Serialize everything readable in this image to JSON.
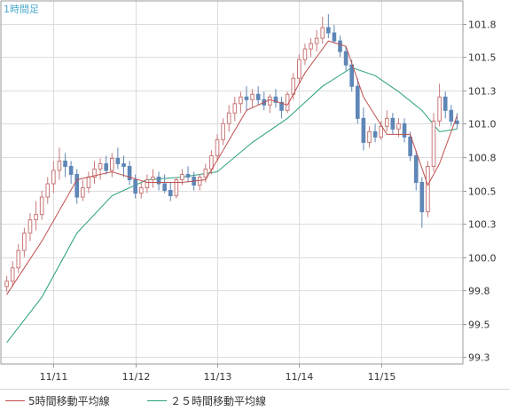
{
  "chart_data": {
    "type": "candlestick",
    "title": "1時間足",
    "x_tick_labels": [
      "11/11",
      "11/12",
      "11/13",
      "11/14",
      "11/15"
    ],
    "y_tick_labels": [
      "101.8",
      "101.5",
      "101.3",
      "101.0",
      "100.8",
      "100.5",
      "100.3",
      "100.0",
      "99.8",
      "99.5",
      "99.3"
    ],
    "y_tick_values": [
      101.75,
      101.5,
      101.25,
      101.0,
      100.75,
      100.5,
      100.25,
      100.0,
      99.75,
      99.5,
      99.25
    ],
    "ylim": [
      99.2,
      101.92
    ],
    "grid": true,
    "legend_position": "bottom",
    "colors": {
      "up": "#c87878",
      "down": "#5e86b6",
      "ma5": "#c05050",
      "ma25": "#2aa07a",
      "grid": "#dcdcdc",
      "axis": "#999999",
      "title": "#4aa8cc"
    },
    "series": [
      {
        "name": "5時間移動平均線",
        "color": "#c05050"
      },
      {
        "name": "２５時間移動平均線",
        "color": "#2aa07a"
      }
    ],
    "candles": [
      [
        99.78,
        99.86,
        99.74,
        99.82
      ],
      [
        99.82,
        99.97,
        99.78,
        99.92
      ],
      [
        99.92,
        100.1,
        99.88,
        100.05
      ],
      [
        100.05,
        100.22,
        100.0,
        100.18
      ],
      [
        100.18,
        100.33,
        100.12,
        100.28
      ],
      [
        100.28,
        100.42,
        100.2,
        100.32
      ],
      [
        100.32,
        100.5,
        100.28,
        100.45
      ],
      [
        100.45,
        100.6,
        100.4,
        100.55
      ],
      [
        100.55,
        100.72,
        100.48,
        100.65
      ],
      [
        100.65,
        100.82,
        100.58,
        100.72
      ],
      [
        100.72,
        100.78,
        100.6,
        100.68
      ],
      [
        100.68,
        100.72,
        100.55,
        100.62
      ],
      [
        100.62,
        100.66,
        100.4,
        100.45
      ],
      [
        100.45,
        100.58,
        100.42,
        100.52
      ],
      [
        100.52,
        100.64,
        100.48,
        100.6
      ],
      [
        100.6,
        100.72,
        100.55,
        100.66
      ],
      [
        100.66,
        100.74,
        100.58,
        100.7
      ],
      [
        100.7,
        100.76,
        100.62,
        100.65
      ],
      [
        100.65,
        100.78,
        100.6,
        100.74
      ],
      [
        100.74,
        100.82,
        100.66,
        100.7
      ],
      [
        100.7,
        100.76,
        100.6,
        100.68
      ],
      [
        100.68,
        100.72,
        100.54,
        100.58
      ],
      [
        100.58,
        100.62,
        100.44,
        100.48
      ],
      [
        100.48,
        100.56,
        100.44,
        100.52
      ],
      [
        100.52,
        100.62,
        100.48,
        100.58
      ],
      [
        100.58,
        100.66,
        100.52,
        100.6
      ],
      [
        100.6,
        100.64,
        100.5,
        100.55
      ],
      [
        100.55,
        100.62,
        100.48,
        100.5
      ],
      [
        100.5,
        100.56,
        100.42,
        100.46
      ],
      [
        100.46,
        100.6,
        100.44,
        100.58
      ],
      [
        100.58,
        100.66,
        100.54,
        100.62
      ],
      [
        100.62,
        100.68,
        100.56,
        100.6
      ],
      [
        100.6,
        100.64,
        100.5,
        100.54
      ],
      [
        100.54,
        100.62,
        100.5,
        100.6
      ],
      [
        100.6,
        100.7,
        100.56,
        100.66
      ],
      [
        100.66,
        100.8,
        100.62,
        100.76
      ],
      [
        100.76,
        100.92,
        100.72,
        100.88
      ],
      [
        100.88,
        101.04,
        100.84,
        101.0
      ],
      [
        101.0,
        101.14,
        100.94,
        101.08
      ],
      [
        101.08,
        101.2,
        101.02,
        101.15
      ],
      [
        101.15,
        101.24,
        101.08,
        101.2
      ],
      [
        101.2,
        101.28,
        101.1,
        101.18
      ],
      [
        101.18,
        101.26,
        101.12,
        101.22
      ],
      [
        101.22,
        101.28,
        101.14,
        101.18
      ],
      [
        101.18,
        101.24,
        101.1,
        101.14
      ],
      [
        101.14,
        101.22,
        101.08,
        101.2
      ],
      [
        101.2,
        101.26,
        101.12,
        101.16
      ],
      [
        101.16,
        101.2,
        101.04,
        101.1
      ],
      [
        101.1,
        101.24,
        101.08,
        101.22
      ],
      [
        101.22,
        101.38,
        101.18,
        101.34
      ],
      [
        101.34,
        101.52,
        101.3,
        101.48
      ],
      [
        101.48,
        101.6,
        101.44,
        101.56
      ],
      [
        101.56,
        101.64,
        101.5,
        101.6
      ],
      [
        101.6,
        101.7,
        101.54,
        101.64
      ],
      [
        101.64,
        101.8,
        101.6,
        101.72
      ],
      [
        101.72,
        101.82,
        101.64,
        101.68
      ],
      [
        101.68,
        101.74,
        101.6,
        101.62
      ],
      [
        101.62,
        101.66,
        101.5,
        101.54
      ],
      [
        101.54,
        101.58,
        101.4,
        101.44
      ],
      [
        101.44,
        101.48,
        101.24,
        101.28
      ],
      [
        101.28,
        101.34,
        101.0,
        101.04
      ],
      [
        101.04,
        101.12,
        100.8,
        100.86
      ],
      [
        100.86,
        100.98,
        100.82,
        100.94
      ],
      [
        100.94,
        101.0,
        100.86,
        100.9
      ],
      [
        100.9,
        101.02,
        100.88,
        100.98
      ],
      [
        100.98,
        101.1,
        100.94,
        101.04
      ],
      [
        101.04,
        101.08,
        100.92,
        100.96
      ],
      [
        100.96,
        101.04,
        100.9,
        101.0
      ],
      [
        101.0,
        101.04,
        100.86,
        100.9
      ],
      [
        100.9,
        100.94,
        100.72,
        100.76
      ],
      [
        100.76,
        100.8,
        100.5,
        100.56
      ],
      [
        100.56,
        100.6,
        100.22,
        100.34
      ],
      [
        100.34,
        100.72,
        100.3,
        100.68
      ],
      [
        100.68,
        101.08,
        100.64,
        101.02
      ],
      [
        101.02,
        101.3,
        100.98,
        101.2
      ],
      [
        101.2,
        101.24,
        101.04,
        101.1
      ],
      [
        101.1,
        101.14,
        100.98,
        101.02
      ],
      [
        101.02,
        101.08,
        100.96,
        101.0
      ]
    ],
    "ma5": [
      [
        0,
        99.72
      ],
      [
        6,
        100.12
      ],
      [
        12,
        100.58
      ],
      [
        18,
        100.64
      ],
      [
        24,
        100.56
      ],
      [
        30,
        100.56
      ],
      [
        34,
        100.58
      ],
      [
        37,
        100.8
      ],
      [
        41,
        101.1
      ],
      [
        45,
        101.18
      ],
      [
        48,
        101.14
      ],
      [
        51,
        101.38
      ],
      [
        55,
        101.62
      ],
      [
        58,
        101.58
      ],
      [
        61,
        101.2
      ],
      [
        65,
        100.92
      ],
      [
        69,
        100.92
      ],
      [
        72,
        100.54
      ],
      [
        74,
        100.7
      ],
      [
        77,
        101.06
      ]
    ],
    "ma25": [
      [
        0,
        99.36
      ],
      [
        6,
        99.7
      ],
      [
        12,
        100.18
      ],
      [
        18,
        100.46
      ],
      [
        24,
        100.58
      ],
      [
        30,
        100.6
      ],
      [
        36,
        100.64
      ],
      [
        42,
        100.86
      ],
      [
        48,
        101.04
      ],
      [
        54,
        101.28
      ],
      [
        59,
        101.42
      ],
      [
        63,
        101.36
      ],
      [
        67,
        101.24
      ],
      [
        71,
        101.1
      ],
      [
        74,
        100.94
      ],
      [
        77,
        100.96
      ]
    ],
    "x_tick_candle_index": [
      8,
      22,
      36,
      50,
      64
    ]
  }
}
